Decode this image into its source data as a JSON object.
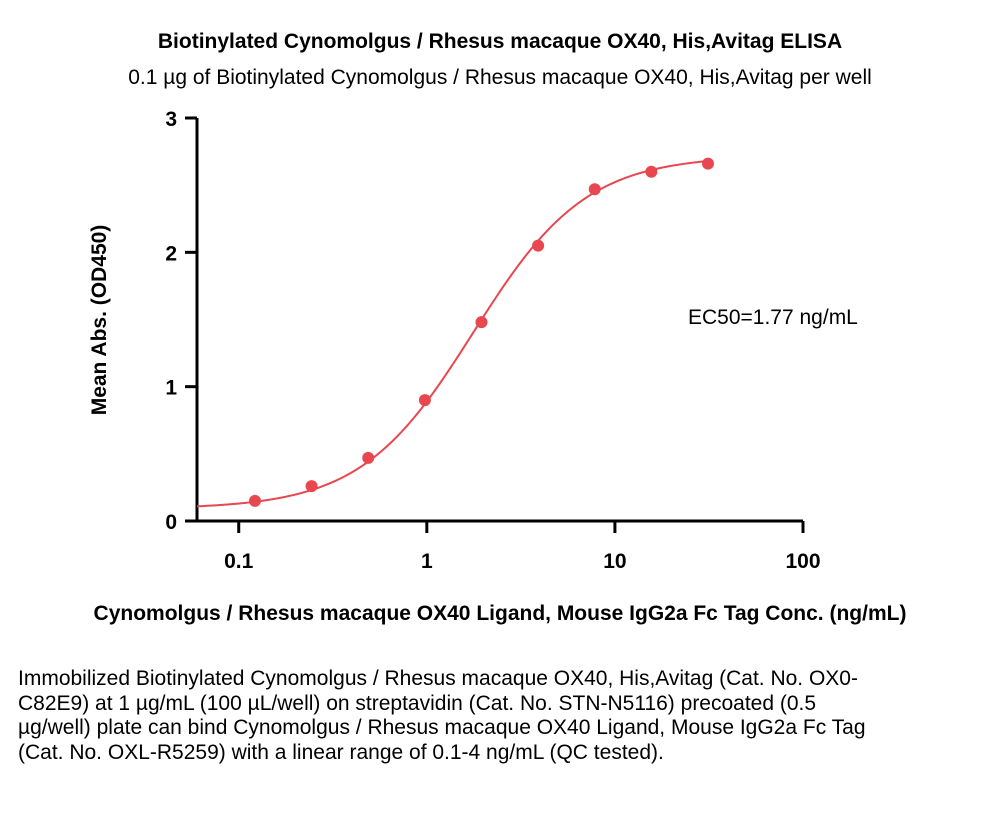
{
  "title": "Biotinylated Cynomolgus / Rhesus macaque OX40, His,Avitag ELISA",
  "subtitle": "0.1 µg of Biotinylated Cynomolgus / Rhesus macaque OX40, His,Avitag per well",
  "caption": "Immobilized Biotinylated Cynomolgus / Rhesus macaque OX40, His,Avitag (Cat. No. OX0-C82E9) at 1 µg/mL (100 µL/well) on streptavidin (Cat. No. STN-N5116) precoated (0.5 µg/well) plate can bind Cynomolgus / Rhesus macaque OX40 Ligand, Mouse IgG2a Fc Tag (Cat. No. OXL-R5259) with a linear range of 0.1-4 ng/mL (QC tested).",
  "chart_data": {
    "type": "scatter",
    "xscale": "log",
    "xlabel": "Cynomolgus / Rhesus macaque OX40 Ligand, Mouse IgG2a Fc Tag Conc. (ng/mL)",
    "ylabel": "Mean Abs. (OD450)",
    "xlim": [
      0.06,
      100
    ],
    "ylim": [
      0,
      3
    ],
    "xticks": [
      0.1,
      1,
      10,
      100
    ],
    "xtick_labels": [
      "0.1",
      "1",
      "10",
      "100"
    ],
    "yticks": [
      0,
      1,
      2,
      3
    ],
    "ytick_labels": [
      "0",
      "1",
      "2",
      "3"
    ],
    "series": [
      {
        "color": "#e8474f",
        "x": [
          0.122,
          0.244,
          0.488,
          0.977,
          1.953,
          3.906,
          7.813,
          15.625,
          31.25
        ],
        "y": [
          0.15,
          0.26,
          0.47,
          0.9,
          1.48,
          2.05,
          2.47,
          2.6,
          2.66
        ]
      }
    ],
    "fit": {
      "model": "4PL",
      "bottom": 0.09,
      "top": 2.72,
      "ec50": 1.77,
      "hill": 1.45,
      "color": "#e8474f"
    },
    "annotation": "EC50=1.77 ng/mL",
    "grid": false
  }
}
